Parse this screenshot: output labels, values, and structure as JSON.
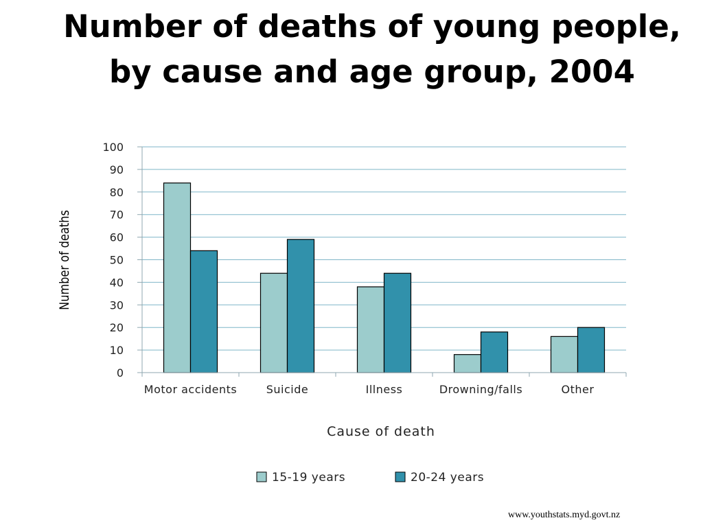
{
  "title": {
    "line1": "Number of deaths of young people,",
    "line2": "by cause and age group, 2004"
  },
  "source": "www.youthstats.myd.govt.nz",
  "chart_data": {
    "type": "bar",
    "categories": [
      "Motor accidents",
      "Suicide",
      "Illness",
      "Drowning/falls",
      "Other"
    ],
    "series": [
      {
        "name": "15-19 years",
        "values": [
          84,
          44,
          38,
          8,
          16
        ],
        "color": "#9ccccc"
      },
      {
        "name": "20-24 years",
        "values": [
          54,
          59,
          44,
          18,
          20
        ],
        "color": "#3191ab"
      }
    ],
    "xlabel": "Cause of death",
    "ylabel": "Number of deaths",
    "ylim": [
      0,
      100
    ],
    "yticks": [
      "0",
      "10",
      "20",
      "30",
      "40",
      "50",
      "60",
      "70",
      "80",
      "90",
      "100"
    ],
    "grid": true,
    "gridline_color": "#7fb6c8",
    "legend_position": "bottom"
  }
}
